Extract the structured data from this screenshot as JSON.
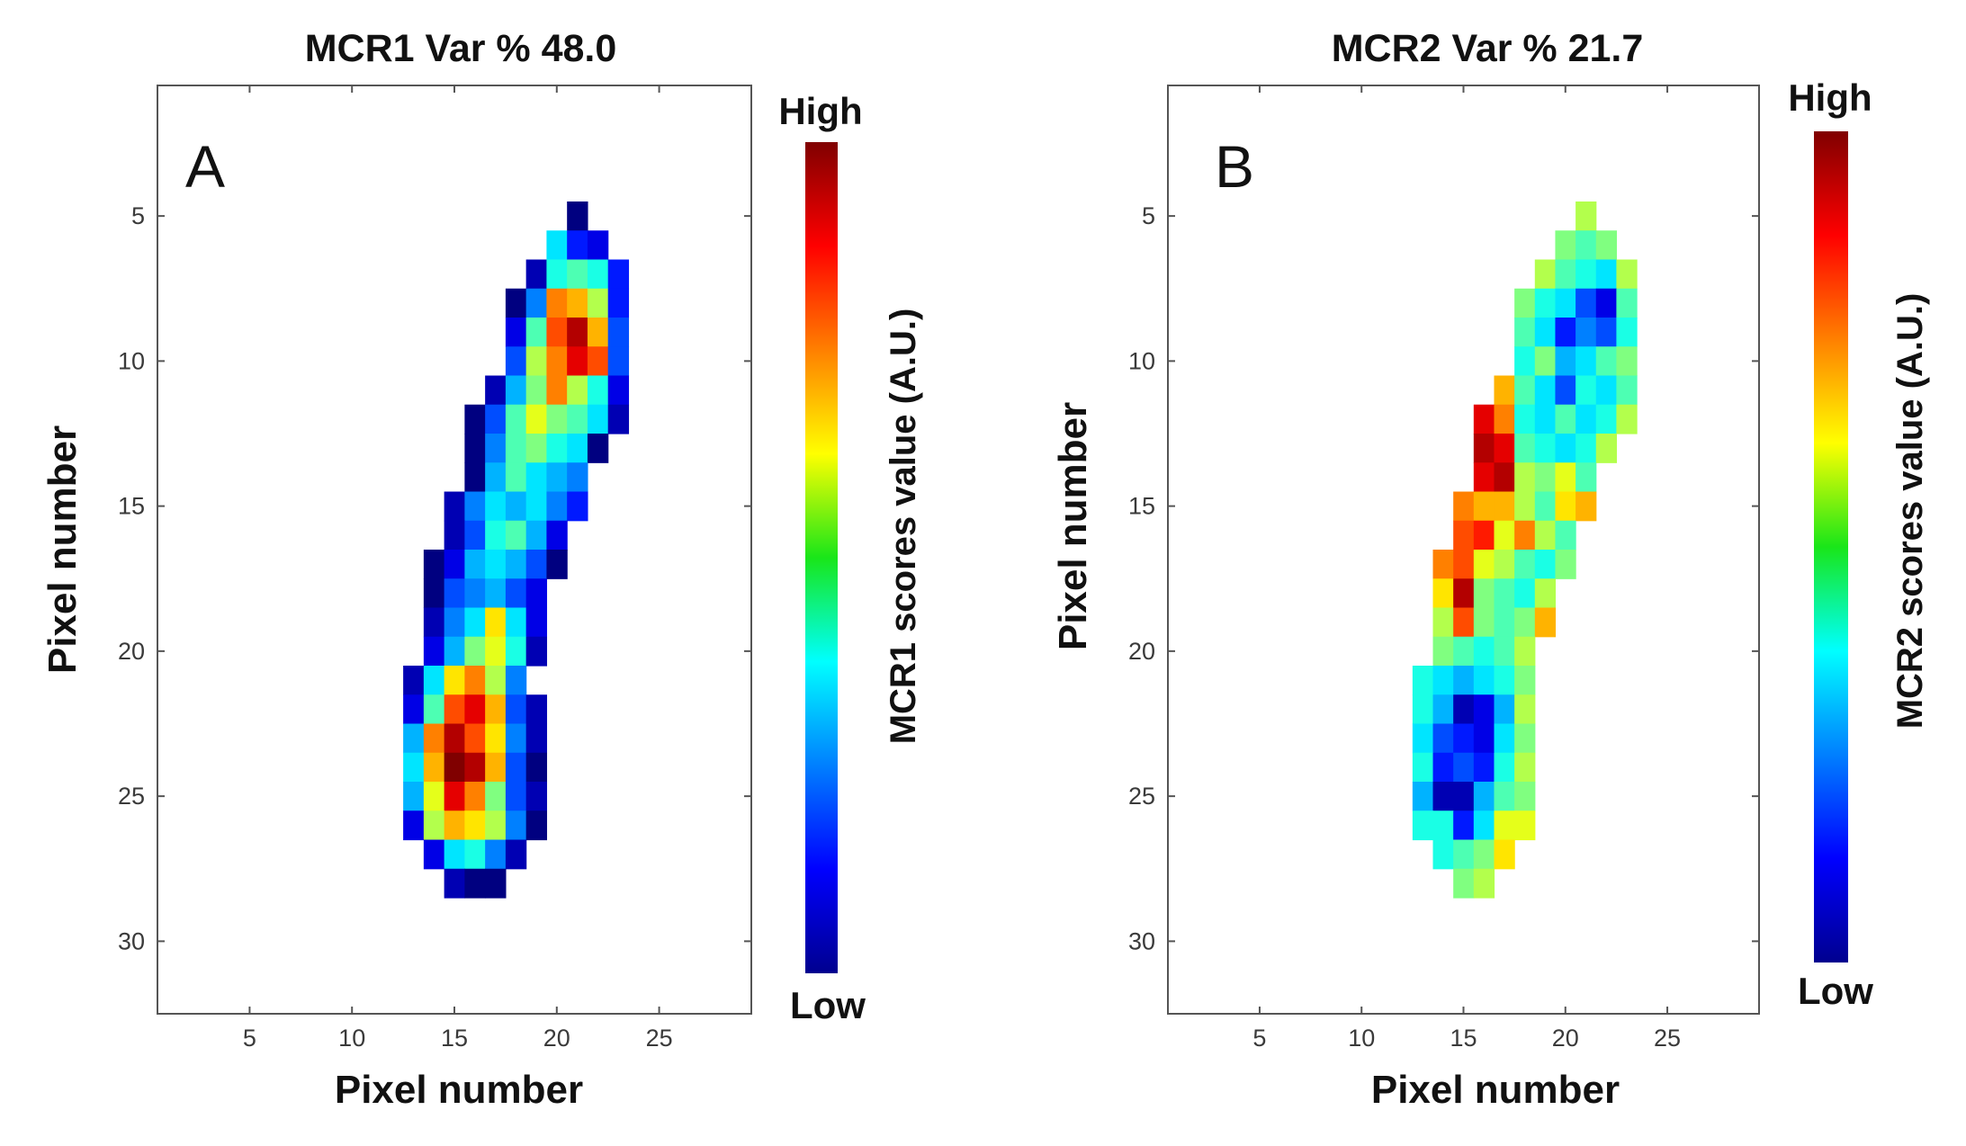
{
  "chart_data": [
    {
      "type": "heatmap",
      "panel_letter": "A",
      "title": "MCR1 Var % 48.0",
      "xlabel": "Pixel number",
      "ylabel": "Pixel number",
      "xlim": [
        0.5,
        29.5
      ],
      "ylim": [
        32.5,
        0.5
      ],
      "xticks": [
        5,
        10,
        15,
        20,
        25
      ],
      "yticks": [
        5,
        10,
        15,
        20,
        25,
        30
      ],
      "colorbar": {
        "label": "MCR1 scores value (A.U.)",
        "high_label": "High",
        "low_label": "Low",
        "colormap": "jet"
      },
      "x_start": 13,
      "rows": [
        {
          "y": 5,
          "values": [
            null,
            null,
            null,
            null,
            null,
            null,
            null,
            null,
            0.0
          ]
        },
        {
          "y": 6,
          "values": [
            null,
            null,
            null,
            null,
            null,
            null,
            null,
            0.35,
            0.15,
            0.1
          ]
        },
        {
          "y": 7,
          "values": [
            null,
            null,
            null,
            null,
            null,
            null,
            0.05,
            0.4,
            0.45,
            0.4,
            0.15
          ]
        },
        {
          "y": 8,
          "values": [
            null,
            null,
            null,
            null,
            null,
            0.0,
            0.25,
            0.75,
            0.7,
            0.55,
            0.15
          ]
        },
        {
          "y": 9,
          "values": [
            null,
            null,
            null,
            null,
            null,
            0.1,
            0.45,
            0.8,
            0.95,
            0.7,
            0.2
          ]
        },
        {
          "y": 10,
          "values": [
            null,
            null,
            null,
            null,
            null,
            0.2,
            0.55,
            0.75,
            0.9,
            0.8,
            0.2
          ]
        },
        {
          "y": 11,
          "values": [
            null,
            null,
            null,
            null,
            0.05,
            0.3,
            0.5,
            0.75,
            0.55,
            0.4,
            0.1
          ]
        },
        {
          "y": 12,
          "values": [
            null,
            null,
            null,
            0.0,
            0.2,
            0.45,
            0.6,
            0.5,
            0.45,
            0.35,
            0.05
          ]
        },
        {
          "y": 13,
          "values": [
            null,
            null,
            null,
            0.0,
            0.25,
            0.45,
            0.5,
            0.4,
            0.35,
            0.0
          ]
        },
        {
          "y": 14,
          "values": [
            null,
            null,
            null,
            0.0,
            0.3,
            0.45,
            0.35,
            0.3,
            0.25
          ]
        },
        {
          "y": 15,
          "values": [
            null,
            null,
            0.05,
            0.25,
            0.35,
            0.3,
            0.35,
            0.25,
            0.15
          ]
        },
        {
          "y": 16,
          "values": [
            null,
            null,
            0.05,
            0.2,
            0.4,
            0.45,
            0.3,
            0.1
          ]
        },
        {
          "y": 17,
          "values": [
            null,
            0.0,
            0.1,
            0.3,
            0.35,
            0.3,
            0.2,
            0.0
          ]
        },
        {
          "y": 18,
          "values": [
            null,
            0.0,
            0.2,
            0.25,
            0.3,
            0.2,
            0.1
          ]
        },
        {
          "y": 19,
          "values": [
            null,
            0.05,
            0.25,
            0.35,
            0.65,
            0.35,
            0.1
          ]
        },
        {
          "y": 20,
          "values": [
            null,
            0.1,
            0.3,
            0.5,
            0.6,
            0.4,
            0.05
          ]
        },
        {
          "y": 21,
          "values": [
            0.05,
            0.35,
            0.65,
            0.75,
            0.55,
            0.25
          ]
        },
        {
          "y": 22,
          "values": [
            0.1,
            0.45,
            0.8,
            0.9,
            0.7,
            0.2,
            0.05
          ]
        },
        {
          "y": 23,
          "values": [
            0.3,
            0.75,
            0.95,
            0.8,
            0.65,
            0.25,
            0.05
          ]
        },
        {
          "y": 24,
          "values": [
            0.35,
            0.7,
            1.0,
            0.95,
            0.7,
            0.2,
            0.0
          ]
        },
        {
          "y": 25,
          "values": [
            0.3,
            0.6,
            0.9,
            0.75,
            0.5,
            0.2,
            0.05
          ]
        },
        {
          "y": 26,
          "values": [
            0.1,
            0.55,
            0.7,
            0.65,
            0.55,
            0.25,
            0.0
          ]
        },
        {
          "y": 27,
          "values": [
            null,
            0.1,
            0.35,
            0.4,
            0.25,
            0.05
          ]
        },
        {
          "y": 28,
          "values": [
            null,
            null,
            0.05,
            0.0,
            0.0
          ]
        }
      ]
    },
    {
      "type": "heatmap",
      "panel_letter": "B",
      "title": "MCR2 Var % 21.7",
      "xlabel": "Pixel number",
      "ylabel": "Pixel number",
      "xlim": [
        0.5,
        29.5
      ],
      "ylim": [
        32.5,
        0.5
      ],
      "xticks": [
        5,
        10,
        15,
        20,
        25
      ],
      "yticks": [
        5,
        10,
        15,
        20,
        25,
        30
      ],
      "colorbar": {
        "label": "MCR2 scores value (A.U.)",
        "high_label": "High",
        "low_label": "Low",
        "colormap": "jet"
      },
      "x_start": 13,
      "rows": [
        {
          "y": 5,
          "values": [
            null,
            null,
            null,
            null,
            null,
            null,
            null,
            null,
            0.55
          ]
        },
        {
          "y": 6,
          "values": [
            null,
            null,
            null,
            null,
            null,
            null,
            null,
            0.5,
            0.45,
            0.5
          ]
        },
        {
          "y": 7,
          "values": [
            null,
            null,
            null,
            null,
            null,
            null,
            0.55,
            0.45,
            0.4,
            0.35,
            0.55
          ]
        },
        {
          "y": 8,
          "values": [
            null,
            null,
            null,
            null,
            null,
            0.5,
            0.4,
            0.35,
            0.2,
            0.1,
            0.45
          ]
        },
        {
          "y": 9,
          "values": [
            null,
            null,
            null,
            null,
            null,
            0.45,
            0.35,
            0.15,
            0.25,
            0.2,
            0.4
          ]
        },
        {
          "y": 10,
          "values": [
            null,
            null,
            null,
            null,
            null,
            0.4,
            0.5,
            0.3,
            0.35,
            0.45,
            0.5
          ]
        },
        {
          "y": 11,
          "values": [
            null,
            null,
            null,
            null,
            0.7,
            0.45,
            0.35,
            0.2,
            0.4,
            0.35,
            0.45
          ]
        },
        {
          "y": 12,
          "values": [
            null,
            null,
            null,
            0.9,
            0.75,
            0.4,
            0.35,
            0.45,
            0.35,
            0.4,
            0.55
          ]
        },
        {
          "y": 13,
          "values": [
            null,
            null,
            null,
            0.95,
            0.9,
            0.45,
            0.4,
            0.35,
            0.4,
            0.55
          ]
        },
        {
          "y": 14,
          "values": [
            null,
            null,
            null,
            0.9,
            0.95,
            0.55,
            0.5,
            0.6,
            0.45
          ]
        },
        {
          "y": 15,
          "values": [
            null,
            null,
            0.75,
            0.7,
            0.7,
            0.55,
            0.45,
            0.65,
            0.7
          ]
        },
        {
          "y": 16,
          "values": [
            null,
            null,
            0.8,
            0.85,
            0.6,
            0.75,
            0.55,
            0.45
          ]
        },
        {
          "y": 17,
          "values": [
            null,
            0.75,
            0.8,
            0.6,
            0.55,
            0.45,
            0.4,
            0.5
          ]
        },
        {
          "y": 18,
          "values": [
            null,
            0.65,
            0.95,
            0.5,
            0.45,
            0.4,
            0.55
          ]
        },
        {
          "y": 19,
          "values": [
            null,
            0.55,
            0.8,
            0.5,
            0.45,
            0.5,
            0.7
          ]
        },
        {
          "y": 20,
          "values": [
            null,
            0.5,
            0.45,
            0.4,
            0.45,
            0.55
          ]
        },
        {
          "y": 21,
          "values": [
            0.4,
            0.35,
            0.3,
            0.35,
            0.4,
            0.5
          ]
        },
        {
          "y": 22,
          "values": [
            0.4,
            0.3,
            0.05,
            0.1,
            0.3,
            0.55
          ]
        },
        {
          "y": 23,
          "values": [
            0.35,
            0.2,
            0.15,
            0.1,
            0.35,
            0.5
          ]
        },
        {
          "y": 24,
          "values": [
            0.4,
            0.15,
            0.2,
            0.15,
            0.4,
            0.55
          ]
        },
        {
          "y": 25,
          "values": [
            0.3,
            0.05,
            0.05,
            0.3,
            0.45,
            0.5
          ]
        },
        {
          "y": 26,
          "values": [
            0.4,
            0.4,
            0.15,
            0.35,
            0.6,
            0.6
          ]
        },
        {
          "y": 27,
          "values": [
            null,
            0.4,
            0.45,
            0.5,
            0.65
          ]
        },
        {
          "y": 28,
          "values": [
            null,
            null,
            0.5,
            0.55
          ]
        }
      ]
    }
  ]
}
